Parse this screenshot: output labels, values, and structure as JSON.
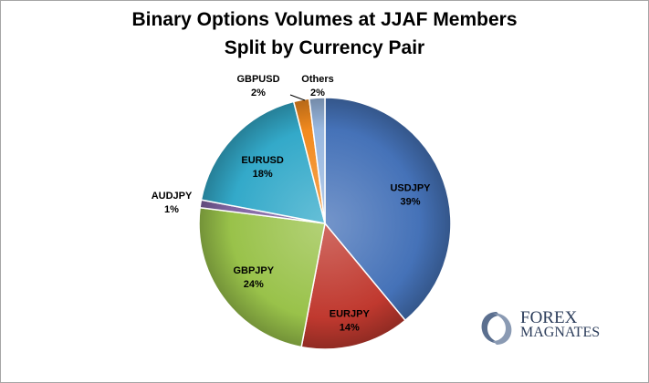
{
  "title_lines": [
    "Binary Options Volumes at JJAF Members",
    "Split by Currency Pair"
  ],
  "logo": {
    "line1": "FOREX",
    "line2": "MAGNATES"
  },
  "chart_data": {
    "type": "pie",
    "title": "Binary Options Volumes at JJAF Members Split by Currency Pair",
    "start_angle_deg": 0,
    "direction": "clockwise",
    "slices": [
      {
        "label": "USDJPY",
        "value": 39,
        "display": "39%",
        "color": "#4572b8"
      },
      {
        "label": "EURJPY",
        "value": 14,
        "display": "14%",
        "color": "#c0392f"
      },
      {
        "label": "GBPJPY",
        "value": 24,
        "display": "24%",
        "color": "#99c24a"
      },
      {
        "label": "AUDJPY",
        "value": 1,
        "display": "1%",
        "color": "#8064a2"
      },
      {
        "label": "EURUSD",
        "value": 18,
        "display": "18%",
        "color": "#33a9c9"
      },
      {
        "label": "GBPUSD",
        "value": 2,
        "display": "2%",
        "color": "#f28a1e"
      },
      {
        "label": "Others",
        "value": 2,
        "display": "2%",
        "color": "#99b8e0"
      }
    ]
  }
}
